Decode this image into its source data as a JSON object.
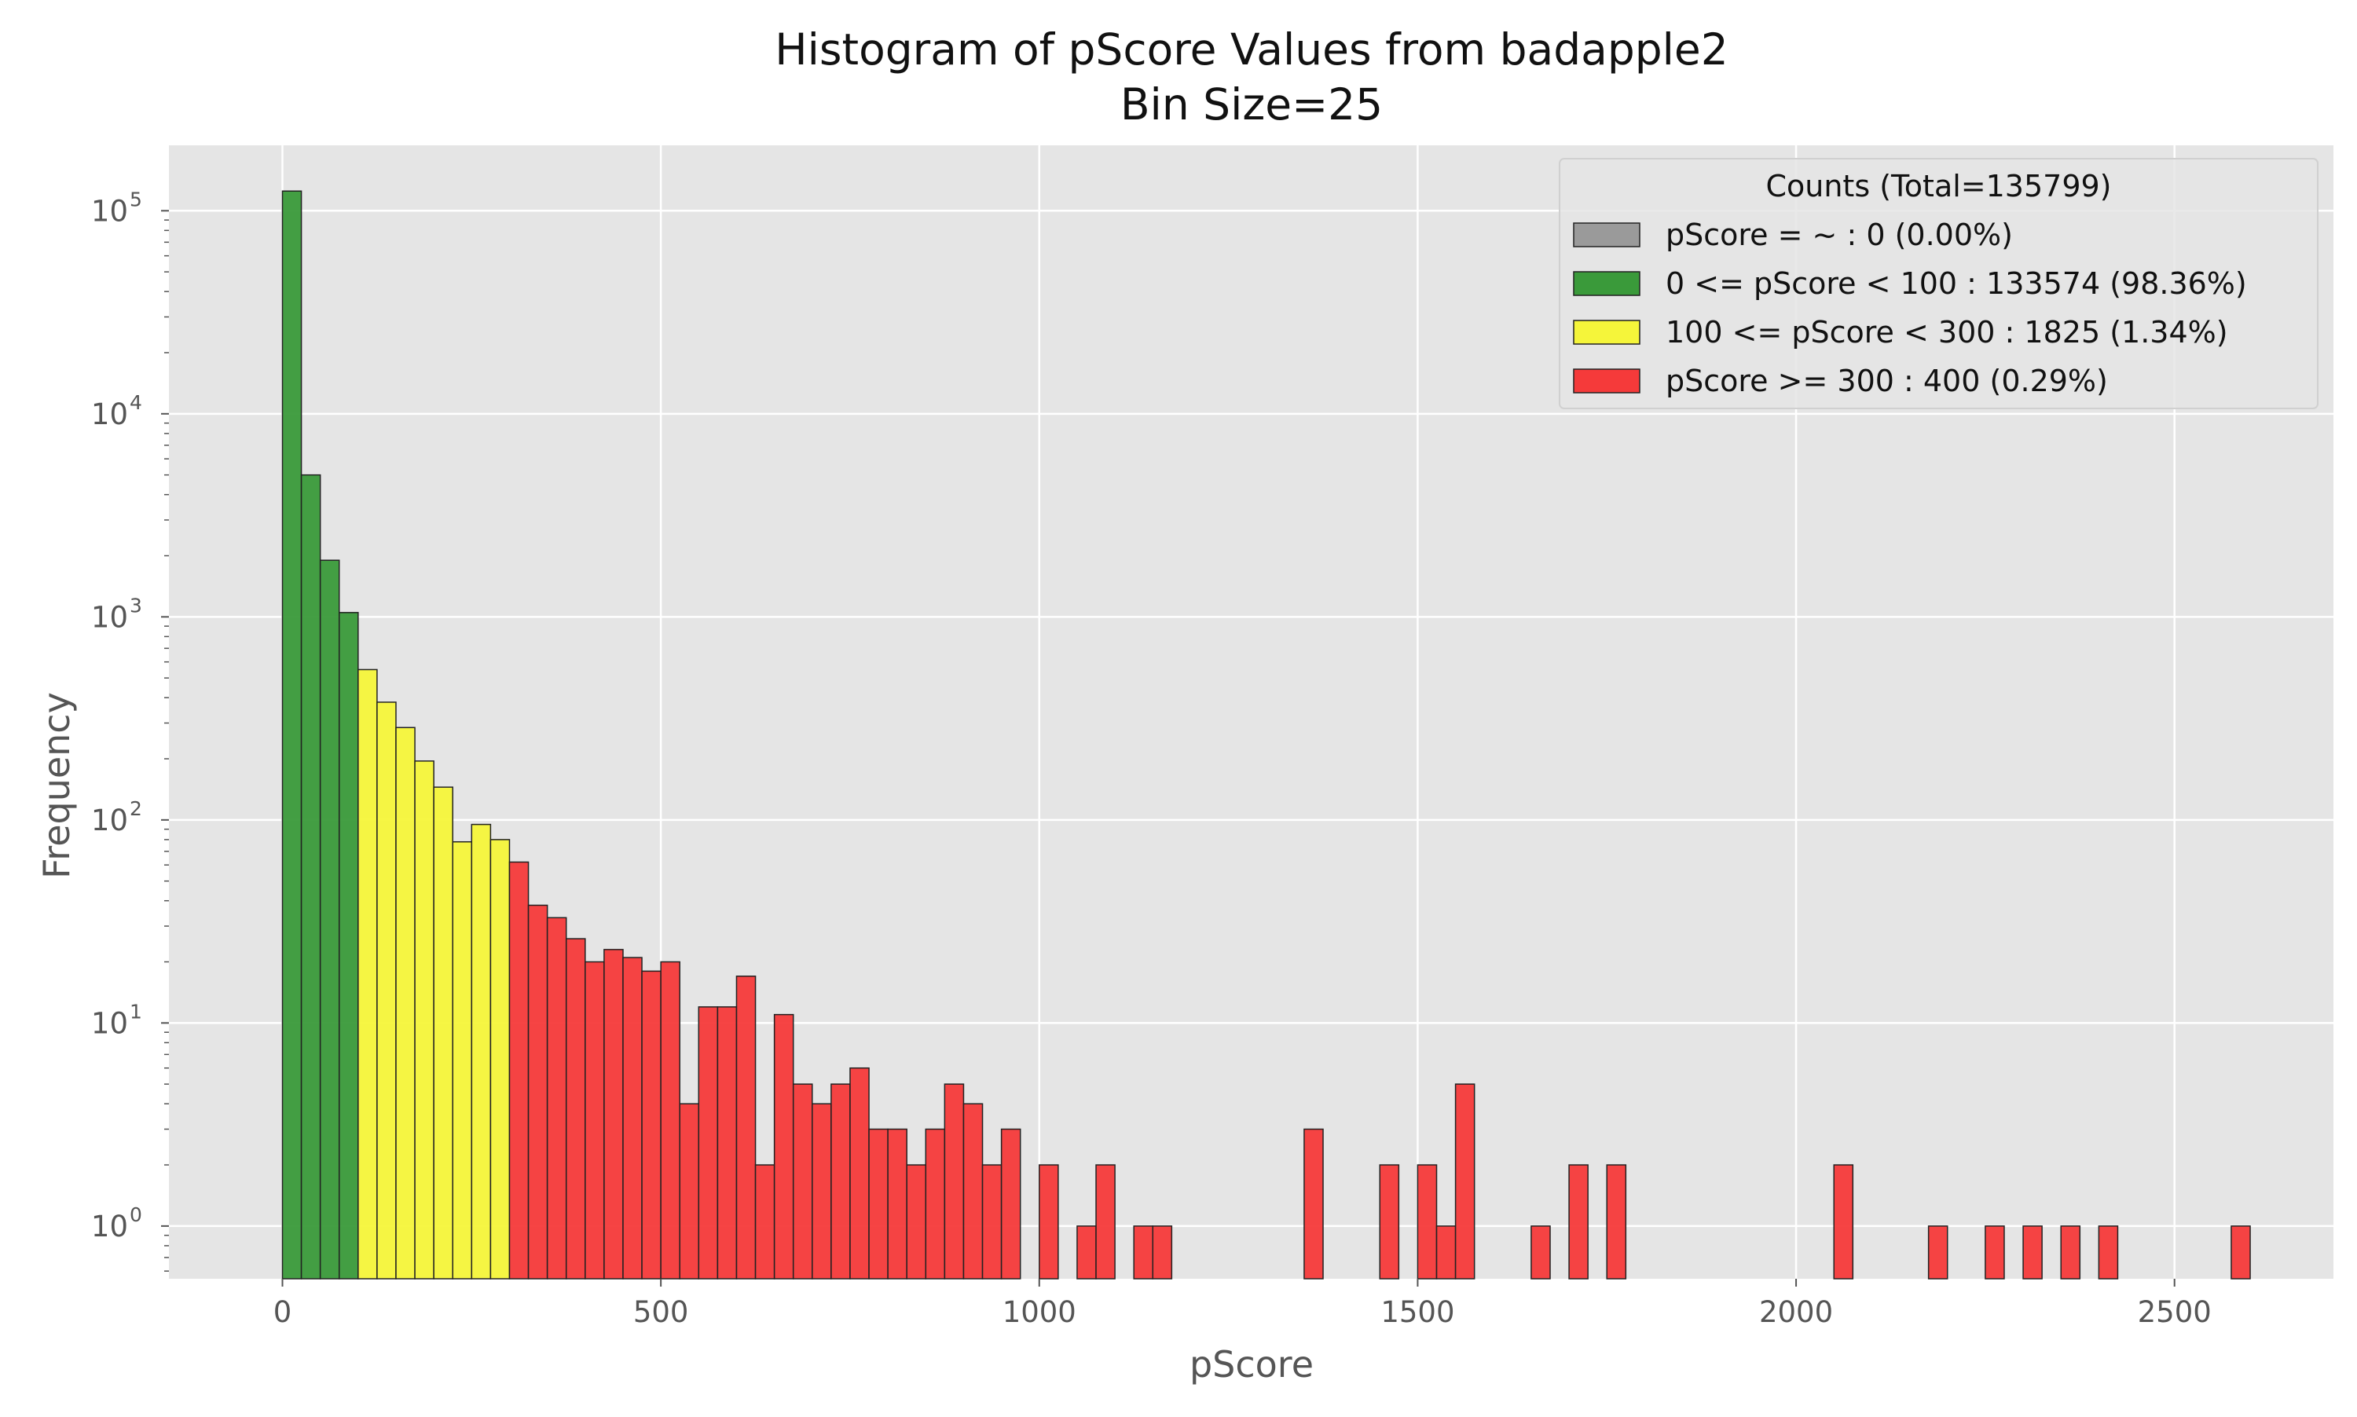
{
  "chart_data": {
    "type": "bar",
    "title": "Histogram of pScore Values from badapple2",
    "subtitle": "Bin Size=25",
    "xlabel": "pScore",
    "ylabel": "Frequency",
    "yscale": "log",
    "xlim": [
      -150,
      2710
    ],
    "ylim": [
      0.55,
      210000
    ],
    "xticks": [
      0,
      500,
      1000,
      1500,
      2000,
      2500
    ],
    "xtick_labels": [
      "0",
      "500",
      "1000",
      "1500",
      "2000",
      "2500"
    ],
    "yticks": [
      1,
      10,
      100,
      1000,
      10000,
      100000
    ],
    "ytick_labels": [
      {
        "base": "10",
        "exp": "0"
      },
      {
        "base": "10",
        "exp": "1"
      },
      {
        "base": "10",
        "exp": "2"
      },
      {
        "base": "10",
        "exp": "3"
      },
      {
        "base": "10",
        "exp": "4"
      },
      {
        "base": "10",
        "exp": "5"
      }
    ],
    "grid": true,
    "bin_width": 25,
    "legend": {
      "title": "Counts (Total=135799)",
      "placement": "top-right",
      "entries": [
        {
          "label": "pScore = ~ : 0 (0.00%)",
          "color": "#9a9a9a"
        },
        {
          "label": "0 <= pScore < 100 : 133574 (98.36%)",
          "color": "#3a9a3a"
        },
        {
          "label": "100 <= pScore < 300 : 1825 (1.34%)",
          "color": "#f5f53a"
        },
        {
          "label": "pScore >= 300 : 400 (0.29%)",
          "color": "#f53a3a"
        }
      ]
    },
    "series": [
      {
        "color": "#3a9a3a",
        "bins": [
          {
            "x": 0,
            "value": 125000
          },
          {
            "x": 25,
            "value": 5000
          },
          {
            "x": 50,
            "value": 1900
          },
          {
            "x": 75,
            "value": 1050
          }
        ]
      },
      {
        "color": "#f5f53a",
        "bins": [
          {
            "x": 100,
            "value": 550
          },
          {
            "x": 125,
            "value": 380
          },
          {
            "x": 150,
            "value": 285
          },
          {
            "x": 175,
            "value": 195
          },
          {
            "x": 200,
            "value": 145
          },
          {
            "x": 225,
            "value": 78
          },
          {
            "x": 250,
            "value": 95
          },
          {
            "x": 275,
            "value": 80
          }
        ]
      },
      {
        "color": "#f53a3a",
        "bins": [
          {
            "x": 300,
            "value": 62
          },
          {
            "x": 325,
            "value": 38
          },
          {
            "x": 350,
            "value": 33
          },
          {
            "x": 375,
            "value": 26
          },
          {
            "x": 400,
            "value": 20
          },
          {
            "x": 425,
            "value": 23
          },
          {
            "x": 450,
            "value": 21
          },
          {
            "x": 475,
            "value": 18
          },
          {
            "x": 500,
            "value": 20
          },
          {
            "x": 525,
            "value": 4
          },
          {
            "x": 550,
            "value": 12
          },
          {
            "x": 575,
            "value": 12
          },
          {
            "x": 600,
            "value": 17
          },
          {
            "x": 625,
            "value": 2
          },
          {
            "x": 650,
            "value": 11
          },
          {
            "x": 675,
            "value": 5
          },
          {
            "x": 700,
            "value": 4
          },
          {
            "x": 725,
            "value": 5
          },
          {
            "x": 750,
            "value": 6
          },
          {
            "x": 775,
            "value": 3
          },
          {
            "x": 800,
            "value": 3
          },
          {
            "x": 825,
            "value": 2
          },
          {
            "x": 850,
            "value": 3
          },
          {
            "x": 875,
            "value": 5
          },
          {
            "x": 900,
            "value": 4
          },
          {
            "x": 925,
            "value": 2
          },
          {
            "x": 950,
            "value": 3
          },
          {
            "x": 1000,
            "value": 2
          },
          {
            "x": 1050,
            "value": 1
          },
          {
            "x": 1075,
            "value": 2
          },
          {
            "x": 1125,
            "value": 1
          },
          {
            "x": 1150,
            "value": 1
          },
          {
            "x": 1350,
            "value": 3
          },
          {
            "x": 1450,
            "value": 2
          },
          {
            "x": 1500,
            "value": 2
          },
          {
            "x": 1525,
            "value": 1
          },
          {
            "x": 1550,
            "value": 5
          },
          {
            "x": 1650,
            "value": 1
          },
          {
            "x": 1700,
            "value": 2
          },
          {
            "x": 1750,
            "value": 2
          },
          {
            "x": 2050,
            "value": 2
          },
          {
            "x": 2175,
            "value": 1
          },
          {
            "x": 2250,
            "value": 1
          },
          {
            "x": 2300,
            "value": 1
          },
          {
            "x": 2350,
            "value": 1
          },
          {
            "x": 2400,
            "value": 1
          },
          {
            "x": 2575,
            "value": 1
          }
        ]
      }
    ]
  }
}
